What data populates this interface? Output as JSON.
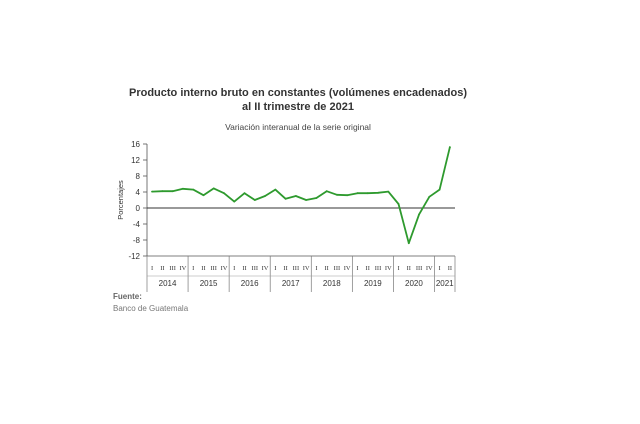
{
  "chart_data": {
    "type": "line",
    "title_line1": "Producto interno bruto en constantes (volúmenes encadenados)",
    "title_line2": "al II trimestre de 2021",
    "subtitle": "Variación interanual de la serie original",
    "ylabel": "Porcentajes",
    "ylim": [
      -12,
      16
    ],
    "yticks": [
      16,
      12,
      8,
      4,
      0,
      -4,
      -8,
      -12
    ],
    "grid": false,
    "line_color": "#2e9a2e",
    "quarter_labels": [
      "I",
      "II",
      "III",
      "IV",
      "I",
      "II",
      "III",
      "IV",
      "I",
      "II",
      "III",
      "IV",
      "I",
      "II",
      "III",
      "IV",
      "I",
      "II",
      "III",
      "IV",
      "I",
      "II",
      "III",
      "IV",
      "I",
      "II",
      "III",
      "IV",
      "I",
      "II"
    ],
    "years": [
      {
        "label": "2014",
        "quarters": 4
      },
      {
        "label": "2015",
        "quarters": 4
      },
      {
        "label": "2016",
        "quarters": 4
      },
      {
        "label": "2017",
        "quarters": 4
      },
      {
        "label": "2018",
        "quarters": 4
      },
      {
        "label": "2019",
        "quarters": 4
      },
      {
        "label": "2020",
        "quarters": 4
      },
      {
        "label": "2021",
        "quarters": 2
      }
    ],
    "series": [
      {
        "values": [
          4.1,
          4.2,
          4.2,
          4.8,
          4.6,
          3.2,
          4.9,
          3.7,
          1.6,
          3.7,
          2.0,
          3.0,
          4.6,
          2.3,
          3.0,
          2.0,
          2.5,
          4.2,
          3.3,
          3.2,
          3.7,
          3.7,
          3.8,
          4.1,
          1.0,
          -8.8,
          -1.6,
          2.8,
          4.6,
          15.2
        ]
      }
    ]
  },
  "source": {
    "label": "Fuente:",
    "value": "Banco de Guatemala"
  }
}
